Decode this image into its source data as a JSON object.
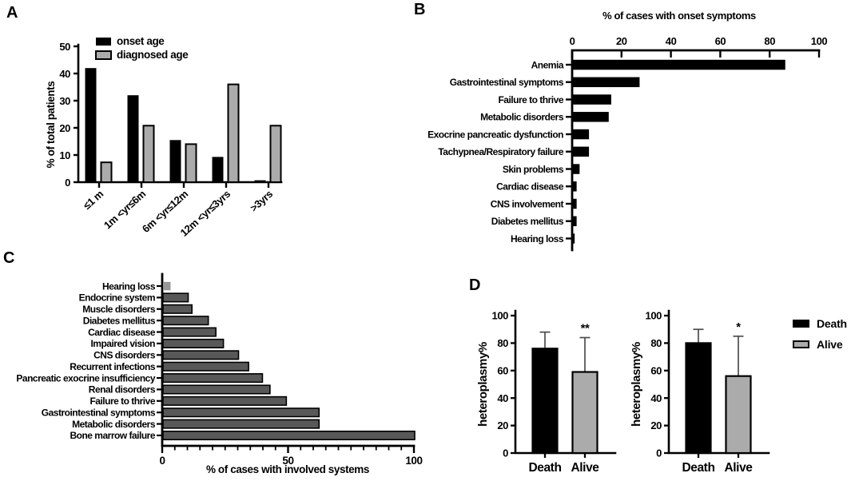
{
  "figure": {
    "panel_labels": {
      "a": "A",
      "b": "B",
      "c": "C",
      "d": "D"
    }
  },
  "chart_data": [
    {
      "id": "A",
      "type": "bar",
      "panel": "A",
      "title": "",
      "ylabel": "% of total patients",
      "ylim": [
        0,
        50
      ],
      "yticks": [
        0,
        10,
        20,
        30,
        40,
        50
      ],
      "categories": [
        "≤1 m",
        "1m <yr≤6m",
        "6m <yr≤12m",
        "12m <yr≤3yrs",
        ">3yrs"
      ],
      "series": [
        {
          "name": "onset age",
          "color": "#000000",
          "values": [
            42,
            32,
            15.5,
            9.3,
            0.7
          ]
        },
        {
          "name": "diagnosed age",
          "color": "#ababab",
          "values": [
            7.3,
            20.8,
            14,
            36,
            20.8
          ]
        }
      ],
      "legend_position": "top-left",
      "grid": false
    },
    {
      "id": "B",
      "type": "bar",
      "orientation": "horizontal",
      "panel": "B",
      "title": "% of cases with onset symptoms",
      "xlim": [
        0,
        100
      ],
      "xticks": [
        0,
        20,
        40,
        60,
        80,
        100
      ],
      "axis_position": "top",
      "bar_color": "#000000",
      "categories": [
        "Anemia",
        "Gastrointestinal symptoms",
        "Failure to thrive",
        "Metabolic disorders",
        "Exocrine pancreatic dysfunction",
        "Tachypnea/Respiratory failure",
        "Skin problems",
        "Cardiac disease",
        "CNS involvement",
        "Diabetes mellitus",
        "Hearing loss"
      ],
      "values": [
        86,
        27,
        15.5,
        14.5,
        6.5,
        6.5,
        2.7,
        1.5,
        1.5,
        1.5,
        0.7
      ],
      "grid": false
    },
    {
      "id": "C",
      "type": "bar",
      "orientation": "horizontal",
      "panel": "C",
      "title": "",
      "xlabel": "% of cases with involved systems",
      "xlim": [
        0,
        100
      ],
      "xticks": [
        0,
        50,
        100
      ],
      "minor_tick_step": 5,
      "axis_position": "bottom",
      "bar_color": "#585858",
      "bar_border_color": "#000000",
      "first_bar_color": "#979797",
      "categories": [
        "Hearing loss",
        "Endocrine system",
        "Muscle disorders",
        "Diabetes mellitus",
        "Cardiac disease",
        "Impaired vision",
        "CNS disorders",
        "Recurrent infections",
        "Pancreatic exocrine insufficiency",
        "Renal disorders",
        "Failure to thrive",
        "Gastrointestinal symptoms",
        "Metabolic disorders",
        "Bone marrow failure"
      ],
      "values": [
        3,
        10,
        11.5,
        18,
        21,
        24,
        30,
        34,
        39.5,
        42.5,
        49,
        62,
        62,
        100
      ],
      "grid": false
    },
    {
      "id": "D1",
      "type": "bar",
      "error_bars": true,
      "panel": "D",
      "ylabel": "heteroplasmy%",
      "ylim": [
        0,
        100
      ],
      "yticks": [
        0,
        20,
        40,
        60,
        80,
        100
      ],
      "categories": [
        "Death",
        "Alive"
      ],
      "values": [
        76,
        59
      ],
      "errors_up": [
        12,
        25
      ],
      "bar_colors": [
        "#000000",
        "#ababab"
      ],
      "error_color": "#4d4d4d",
      "significance": [
        "",
        "**"
      ],
      "grid": false
    },
    {
      "id": "D2",
      "type": "bar",
      "error_bars": true,
      "panel": "D",
      "ylabel": "heteroplasmy%",
      "ylim": [
        0,
        100
      ],
      "yticks": [
        0,
        20,
        40,
        60,
        80,
        100
      ],
      "categories": [
        "Death",
        "Alive"
      ],
      "values": [
        80,
        56
      ],
      "errors_up": [
        10,
        29
      ],
      "bar_colors": [
        "#000000",
        "#ababab"
      ],
      "error_color": "#4d4d4d",
      "significance": [
        "",
        "*"
      ],
      "grid": false
    }
  ],
  "legend_d": {
    "items": [
      {
        "label": "Death",
        "color": "#000000",
        "border": "#000000"
      },
      {
        "label": "Alive",
        "color": "#ababab",
        "border": "#000000"
      }
    ]
  }
}
